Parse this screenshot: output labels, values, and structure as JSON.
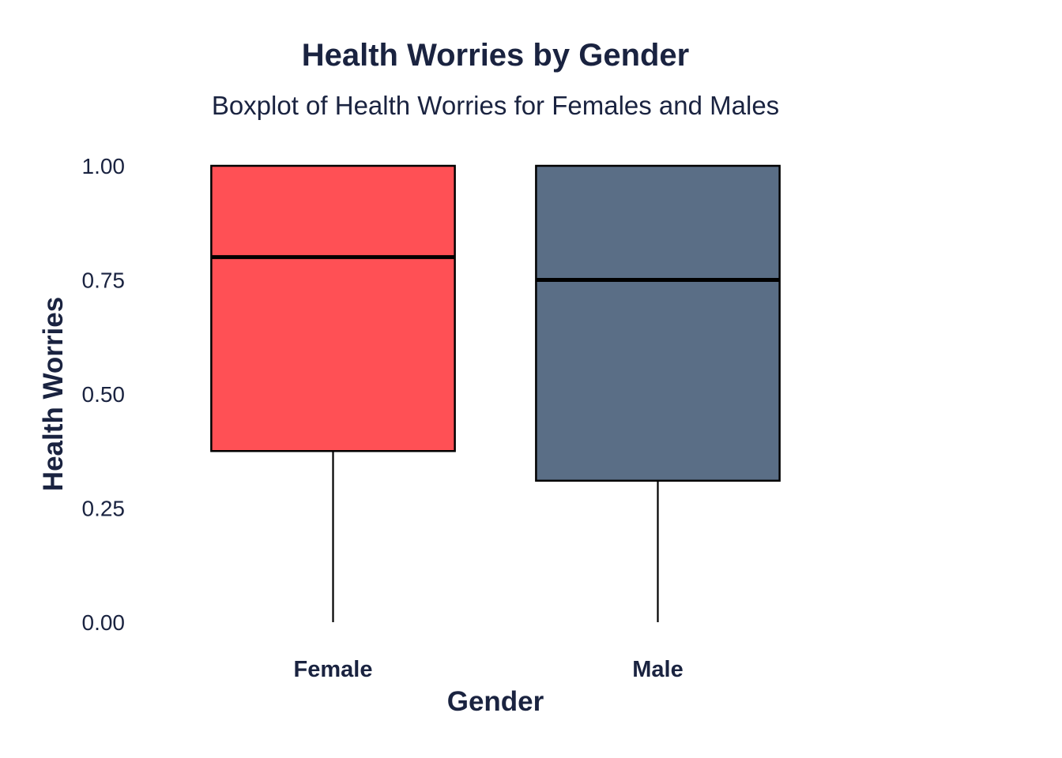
{
  "chart_data": {
    "type": "boxplot",
    "title": "Health Worries by Gender",
    "subtitle": "Boxplot of Health Worries for Females and Males",
    "xlabel": "Gender",
    "ylabel": "Health Worries",
    "ylim": [
      0,
      1
    ],
    "y_ticks": [
      "0.00",
      "0.25",
      "0.50",
      "0.75",
      "1.00"
    ],
    "grid": false,
    "legend": "none",
    "categories": [
      "Female",
      "Male"
    ],
    "boxes": [
      {
        "category": "Female",
        "min": 0.0,
        "q1": 0.375,
        "median": 0.8,
        "q3": 1.0,
        "max": 1.0,
        "color": "#ff5055"
      },
      {
        "category": "Male",
        "min": 0.0,
        "q1": 0.31,
        "median": 0.75,
        "q3": 1.0,
        "max": 1.0,
        "color": "#5a6e86"
      }
    ]
  }
}
